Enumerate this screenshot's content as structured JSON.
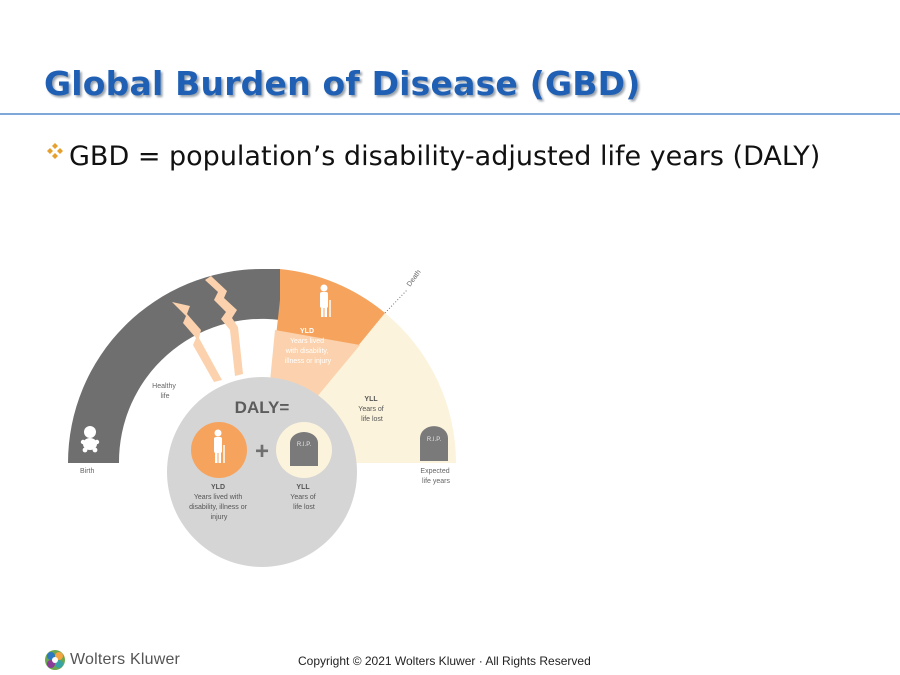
{
  "slide": {
    "title": "Global Burden of Disease (GBD)",
    "bullet": "GBD = population’s disability-adjusted life years (DALY)",
    "bullet_icon": "four-diamond-bullet-icon"
  },
  "diagram": {
    "death_label": "Death",
    "healthy_life": [
      "Healthy",
      "life"
    ],
    "birth_label": "Birth",
    "expected_life": [
      "Expected",
      "life years"
    ],
    "yld_arc": {
      "abbr": "YLD",
      "lines": [
        "Years lived",
        "with disability,",
        "illness or injury"
      ]
    },
    "yll_arc": {
      "abbr": "YLL",
      "lines": [
        "Years of",
        "life lost"
      ]
    },
    "daly_label": "DALY=",
    "plus": "+",
    "yld_circle": {
      "abbr": "YLD",
      "lines": [
        "Years lived with",
        "disability, illness or",
        "injury"
      ]
    },
    "yll_circle": {
      "abbr": "YLL",
      "lines": [
        "Years of",
        "life lost"
      ]
    },
    "tombstone_text": "R.I.P.",
    "colors": {
      "gray": "#6f6f6f",
      "orange": "#f6a35e",
      "light_orange": "#fbd2ad",
      "cream": "#fbf3dc",
      "circle": "#d5d5d5"
    }
  },
  "footer": {
    "logo": "Wolters Kluwer",
    "copyright": "Copyright © 2021 Wolters Kluwer · All Rights Reserved"
  }
}
